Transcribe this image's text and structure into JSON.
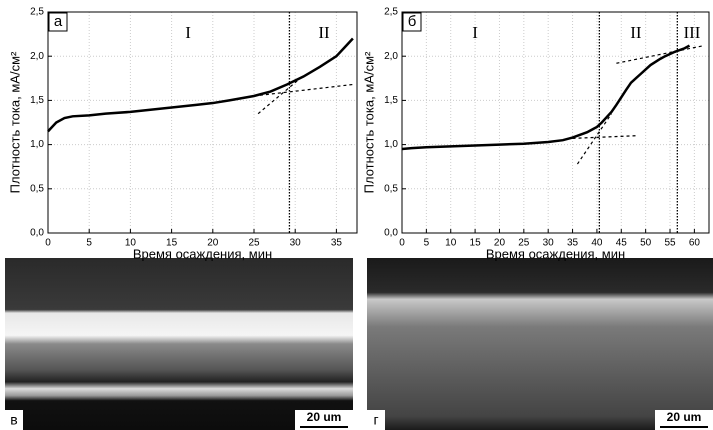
{
  "chart_data": [
    {
      "type": "line",
      "panel_label": "а",
      "xlabel": "Время осаждения, мин",
      "ylabel": "Плотность тока, мА/см²",
      "x": [
        0,
        1,
        2,
        3,
        5,
        7,
        10,
        12,
        15,
        18,
        20,
        22,
        25,
        27,
        29,
        31,
        33,
        35,
        36,
        37
      ],
      "series": [
        {
          "color": "#000000",
          "values": [
            1.15,
            1.25,
            1.3,
            1.32,
            1.33,
            1.35,
            1.37,
            1.39,
            1.42,
            1.45,
            1.47,
            1.5,
            1.55,
            1.6,
            1.68,
            1.77,
            1.88,
            2.0,
            2.1,
            2.2
          ]
        }
      ],
      "xlim": [
        0,
        37.5
      ],
      "xticks": [
        0,
        5,
        10,
        15,
        20,
        25,
        30,
        35
      ],
      "ylim": [
        0,
        2.5
      ],
      "yticks": [
        {
          "value": 0,
          "label": "0,0"
        },
        {
          "value": 0.5,
          "label": "0,5"
        },
        {
          "value": 1,
          "label": "1,0"
        },
        {
          "value": 1.5,
          "label": "1,5"
        },
        {
          "value": 2,
          "label": "2,0"
        },
        {
          "value": 2.5,
          "label": "2,5"
        }
      ],
      "grid": true,
      "vlines": [
        29.3
      ],
      "dashed_lines": [
        {
          "x": [
            25.5,
            31
          ],
          "y": [
            1.35,
            1.78
          ]
        },
        {
          "x": [
            25,
            37
          ],
          "y": [
            1.55,
            1.68
          ]
        }
      ],
      "annotations": [
        {
          "text": "I",
          "x": 17,
          "y": 2.25
        },
        {
          "text": "II",
          "x": 33.5,
          "y": 2.25
        }
      ]
    },
    {
      "type": "line",
      "panel_label": "б",
      "xlabel": "Время осаждения, мин",
      "ylabel": "Плотность тока, мА/см²",
      "x": [
        0,
        2,
        5,
        10,
        15,
        20,
        25,
        30,
        33,
        35,
        38,
        40,
        41,
        43,
        44,
        46,
        47,
        49,
        51,
        53,
        54,
        56,
        58,
        59
      ],
      "series": [
        {
          "color": "#000000",
          "values": [
            0.95,
            0.96,
            0.97,
            0.98,
            0.99,
            1.0,
            1.01,
            1.03,
            1.05,
            1.08,
            1.14,
            1.2,
            1.25,
            1.37,
            1.45,
            1.62,
            1.7,
            1.8,
            1.9,
            1.97,
            2.0,
            2.05,
            2.09,
            2.12
          ]
        }
      ],
      "xlim": [
        0,
        63
      ],
      "xticks": [
        0,
        5,
        10,
        15,
        20,
        25,
        30,
        35,
        40,
        45,
        50,
        55,
        60
      ],
      "ylim": [
        0,
        2.5
      ],
      "yticks": [
        {
          "value": 0,
          "label": "0,0"
        },
        {
          "value": 0.5,
          "label": "0,5"
        },
        {
          "value": 1,
          "label": "1,0"
        },
        {
          "value": 1.5,
          "label": "1,5"
        },
        {
          "value": 2,
          "label": "2,0"
        },
        {
          "value": 2.5,
          "label": "2,5"
        }
      ],
      "grid": true,
      "vlines": [
        40.5,
        56.5
      ],
      "dashed_lines": [
        {
          "x": [
            35,
            48
          ],
          "y": [
            1.07,
            1.1
          ]
        },
        {
          "x": [
            36,
            43
          ],
          "y": [
            0.78,
            1.35
          ]
        },
        {
          "x": [
            44,
            62
          ],
          "y": [
            1.92,
            2.12
          ]
        }
      ],
      "annotations": [
        {
          "text": "I",
          "x": 15,
          "y": 2.25
        },
        {
          "text": "II",
          "x": 48,
          "y": 2.25
        },
        {
          "text": "III",
          "x": 59.5,
          "y": 2.25
        }
      ]
    }
  ],
  "images": [
    {
      "label": "в",
      "scale_bar": "20 um"
    },
    {
      "label": "г",
      "scale_bar": "20 um"
    }
  ]
}
